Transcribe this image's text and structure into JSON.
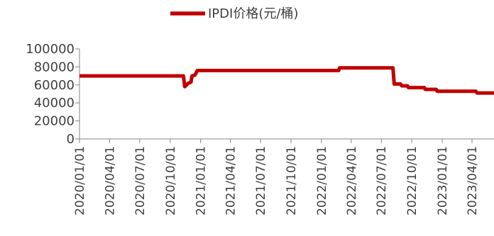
{
  "chart_data": {
    "type": "line",
    "title": "",
    "xlabel": "",
    "ylabel": "",
    "ylim": [
      0,
      100000
    ],
    "y_ticks": [
      0,
      20000,
      40000,
      60000,
      80000,
      100000
    ],
    "y_tick_labels": [
      "0",
      "20000",
      "40000",
      "60000",
      "80000",
      "100000"
    ],
    "x_range": [
      "2020-01-01",
      "2023-06-15"
    ],
    "x_ticks": [
      "2020-01-01",
      "2020-04-01",
      "2020-07-01",
      "2020-10-01",
      "2021-01-01",
      "2021-04-01",
      "2021-07-01",
      "2021-10-01",
      "2022-01-01",
      "2022-04-01",
      "2022-07-01",
      "2022-10-01",
      "2023-01-01",
      "2023-04-01"
    ],
    "x_tick_labels": [
      "2020/01/01",
      "2020/04/01",
      "2020/07/01",
      "2020/10/01",
      "2021/01/01",
      "2021/04/01",
      "2021/07/01",
      "2021/10/01",
      "2022/01/01",
      "2022/04/01",
      "2022/07/01",
      "2022/10/01",
      "2023/01/01",
      "2023/04/01"
    ],
    "legend_position": "top-center",
    "grid": false,
    "series": [
      {
        "name": "IPDI价格(元/桶)",
        "color": "#C00000",
        "points": [
          [
            "2020-01-01",
            70000
          ],
          [
            "2020-11-10",
            70000
          ],
          [
            "2020-11-14",
            58000
          ],
          [
            "2020-11-25",
            62000
          ],
          [
            "2020-12-03",
            63000
          ],
          [
            "2020-12-06",
            70000
          ],
          [
            "2020-12-15",
            71000
          ],
          [
            "2020-12-18",
            73000
          ],
          [
            "2020-12-22",
            76000
          ],
          [
            "2022-02-22",
            76000
          ],
          [
            "2022-02-25",
            79000
          ],
          [
            "2022-08-05",
            79000
          ],
          [
            "2022-08-09",
            61000
          ],
          [
            "2022-08-28",
            61000
          ],
          [
            "2022-09-01",
            59000
          ],
          [
            "2022-09-18",
            59000
          ],
          [
            "2022-09-21",
            57000
          ],
          [
            "2022-11-08",
            57000
          ],
          [
            "2022-11-11",
            55000
          ],
          [
            "2022-12-14",
            55000
          ],
          [
            "2022-12-17",
            53000
          ],
          [
            "2023-04-13",
            53000
          ],
          [
            "2023-04-16",
            51000
          ],
          [
            "2023-06-15",
            51000
          ]
        ]
      }
    ]
  }
}
